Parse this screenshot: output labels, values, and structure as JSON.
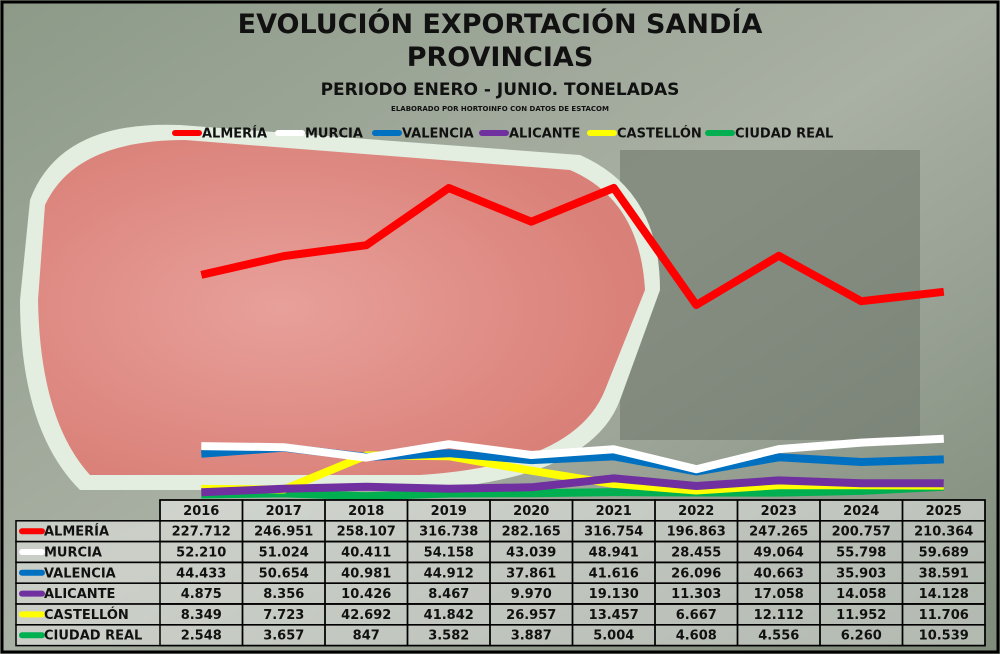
{
  "chart_data": {
    "type": "line",
    "title": "EVOLUCIÓN EXPORTACIÓN SANDÍA PROVINCIAS",
    "subtitle": "PERIODO ENERO - JUNIO. TONELADAS",
    "source": "ELABORADO POR HORTOINFO CON DATOS DE ESTACOM",
    "categories": [
      "2016",
      "2017",
      "2018",
      "2019",
      "2020",
      "2021",
      "2022",
      "2023",
      "2024",
      "2025"
    ],
    "series": [
      {
        "name": "ALMERÍA",
        "color": "#ff0000",
        "values": [
          227712,
          246951,
          258107,
          316738,
          282165,
          316754,
          196863,
          247265,
          200757,
          210364
        ],
        "value_labels": [
          "227.712",
          "246.951",
          "258.107",
          "316.738",
          "282.165",
          "316.754",
          "196.863",
          "247.265",
          "200.757",
          "210.364"
        ]
      },
      {
        "name": "MURCIA",
        "color": "#ffffff",
        "values": [
          52210,
          51024,
          40411,
          54158,
          43039,
          48941,
          28455,
          49064,
          55798,
          59689
        ],
        "value_labels": [
          "52.210",
          "51.024",
          "40.411",
          "54.158",
          "43.039",
          "48.941",
          "28.455",
          "49.064",
          "55.798",
          "59.689"
        ]
      },
      {
        "name": "VALENCIA",
        "color": "#0070c0",
        "values": [
          44433,
          50654,
          40981,
          44912,
          37861,
          41616,
          26096,
          40663,
          35903,
          38591
        ],
        "value_labels": [
          "44.433",
          "50.654",
          "40.981",
          "44.912",
          "37.861",
          "41.616",
          "26.096",
          "40.663",
          "35.903",
          "38.591"
        ]
      },
      {
        "name": "ALICANTE",
        "color": "#7030a0",
        "values": [
          4875,
          8356,
          10426,
          8467,
          9970,
          19130,
          11303,
          17058,
          14058,
          14128
        ],
        "value_labels": [
          "4.875",
          "8.356",
          "10.426",
          "8.467",
          "9.970",
          "19.130",
          "11.303",
          "17.058",
          "14.058",
          "14.128"
        ]
      },
      {
        "name": "CASTELLÓN",
        "color": "#ffff00",
        "values": [
          8349,
          7723,
          42692,
          41842,
          26957,
          13457,
          6667,
          12112,
          11952,
          11706
        ],
        "value_labels": [
          "8.349",
          "7.723",
          "42.692",
          "41.842",
          "26.957",
          "13.457",
          "6.667",
          "12.112",
          "11.952",
          "11.706"
        ]
      },
      {
        "name": "CIUDAD REAL",
        "color": "#00b050",
        "values": [
          2548,
          3657,
          847,
          3582,
          3887,
          5004,
          4608,
          4556,
          6260,
          10539
        ],
        "value_labels": [
          "2.548",
          "3.657",
          "847",
          "3.582",
          "3.887",
          "5.004",
          "4.608",
          "4.556",
          "6.260",
          "10.539"
        ]
      }
    ]
  }
}
